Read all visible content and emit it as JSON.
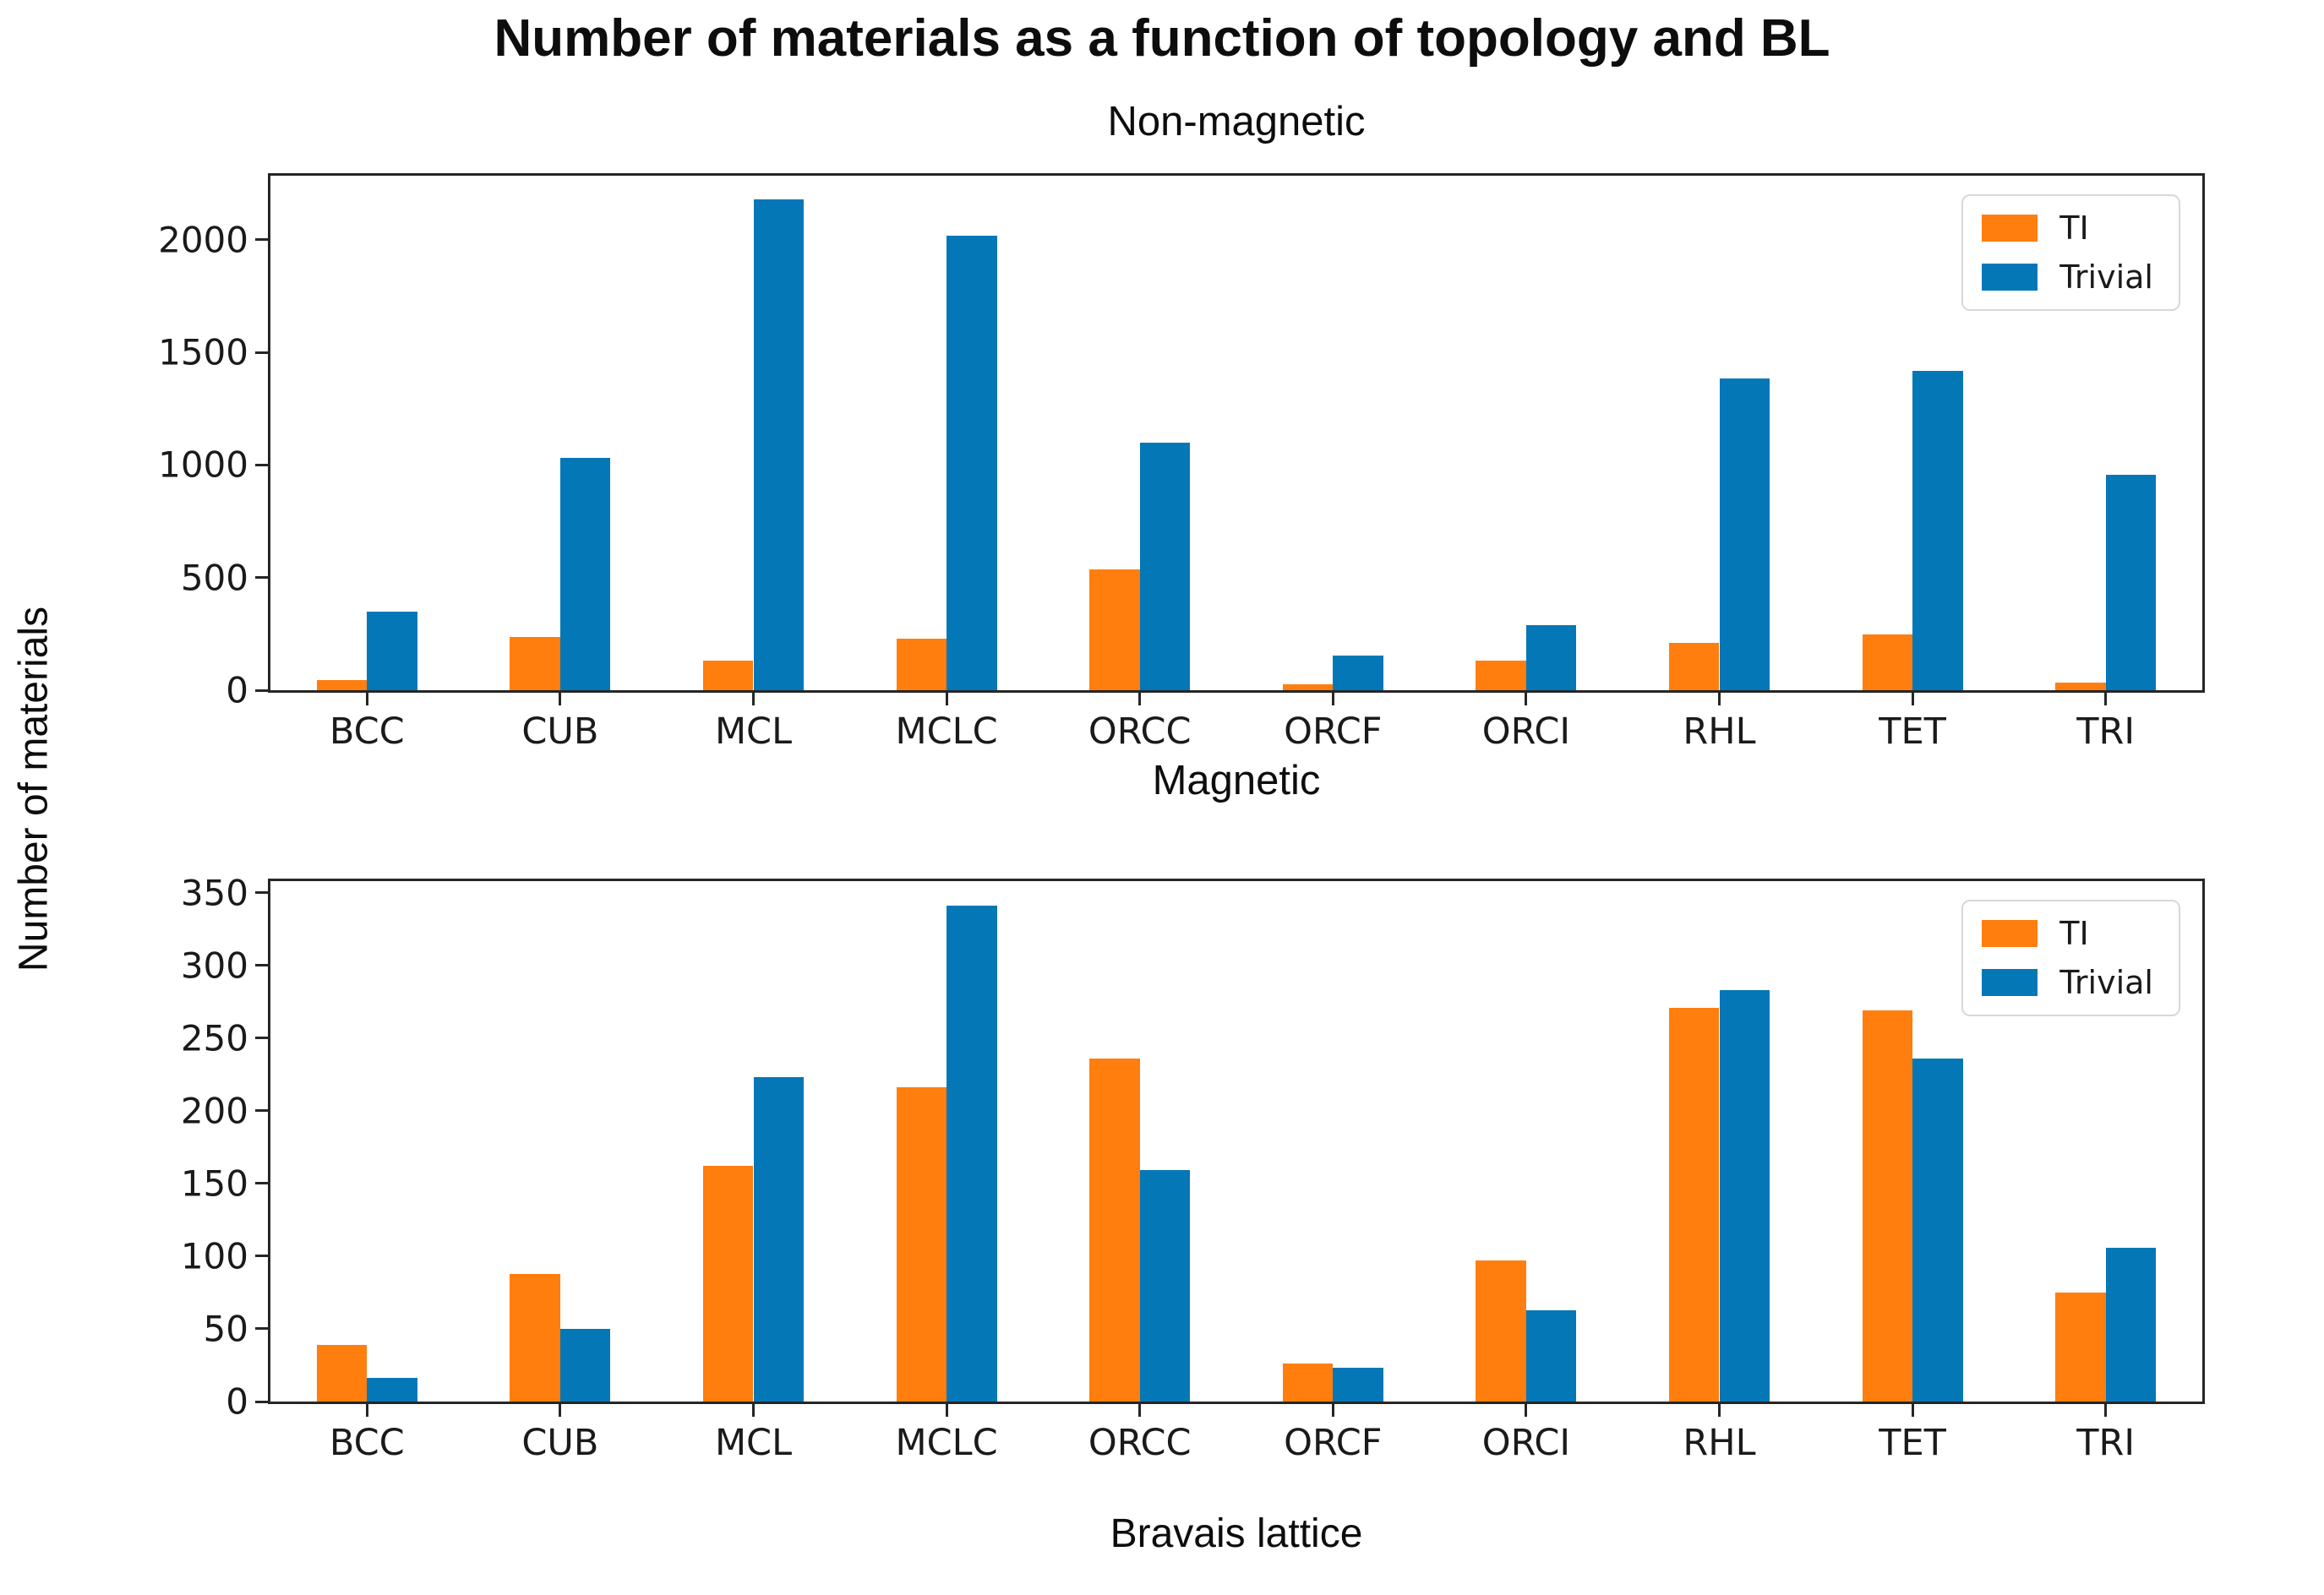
{
  "figure": {
    "title": "Number of materials as a function of topology and BL",
    "xlabel": "Bravais lattice",
    "ylabel": "Number of materials"
  },
  "colors": {
    "ti": "#FF7E0E",
    "trivial": "#0477B7",
    "spine": "#262626"
  },
  "chart_data": [
    {
      "type": "bar",
      "title": "Non-magnetic",
      "categories": [
        "BCC",
        "CUB",
        "MCL",
        "MCLC",
        "ORCC",
        "ORCF",
        "ORCI",
        "RHL",
        "TET",
        "TRI"
      ],
      "series": [
        {
          "name": "TI",
          "values": [
            45,
            235,
            130,
            230,
            535,
            28,
            130,
            210,
            248,
            32
          ]
        },
        {
          "name": "Trivial",
          "values": [
            350,
            1030,
            2180,
            2020,
            1100,
            155,
            288,
            1385,
            1418,
            955
          ]
        }
      ],
      "ylabel": "Number of materials",
      "ylim": [
        0,
        2285
      ],
      "yticks": [
        0,
        500,
        1000,
        1500,
        2000
      ],
      "legend_position": "upper right",
      "grid": false
    },
    {
      "type": "bar",
      "title": "Magnetic",
      "categories": [
        "BCC",
        "CUB",
        "MCL",
        "MCLC",
        "ORCC",
        "ORCF",
        "ORCI",
        "RHL",
        "TET",
        "TRI"
      ],
      "series": [
        {
          "name": "TI",
          "values": [
            39,
            88,
            162,
            216,
            236,
            26,
            97,
            271,
            269,
            75
          ]
        },
        {
          "name": "Trivial",
          "values": [
            16,
            50,
            223,
            341,
            159,
            23,
            63,
            283,
            236,
            106
          ]
        }
      ],
      "xlabel": "Bravais lattice",
      "ylim": [
        0,
        358
      ],
      "yticks": [
        0,
        50,
        100,
        150,
        200,
        250,
        300,
        350
      ],
      "legend_position": "upper right",
      "grid": false
    }
  ]
}
